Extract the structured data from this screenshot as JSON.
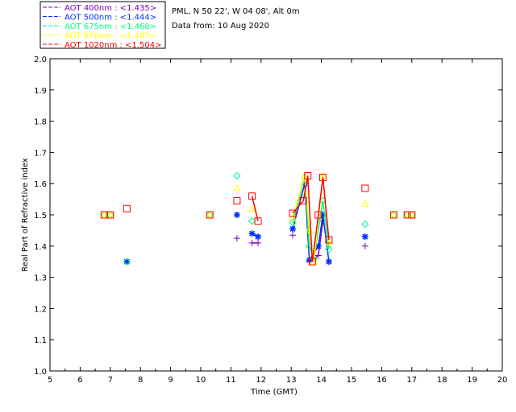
{
  "chart_data": {
    "type": "scatter",
    "title_lines": [
      "PML, N 50 22', W 04 08', Alt 0m",
      "Data from: 10 Aug 2020"
    ],
    "xlabel": "Time (GMT)",
    "ylabel": "Real Part of Refractive index",
    "xlim": [
      5,
      20
    ],
    "ylim": [
      1.0,
      2.0
    ],
    "xticks": [
      "5",
      "6",
      "7",
      "8",
      "9",
      "10",
      "11",
      "12",
      "13",
      "14",
      "15",
      "16",
      "17",
      "18",
      "19",
      "20"
    ],
    "yticks": [
      "1.0",
      "1.1",
      "1.2",
      "1.3",
      "1.4",
      "1.5",
      "1.6",
      "1.7",
      "1.8",
      "1.9",
      "2.0"
    ],
    "legend_position": "top-left outside",
    "series": [
      {
        "name": "AOT  400nm : <1.435>",
        "color": "#7f00bf",
        "marker": "plus",
        "points": [
          [
            11.2,
            1.425
          ],
          [
            11.7,
            1.41
          ],
          [
            11.9,
            1.41
          ],
          [
            13.05,
            1.435
          ],
          [
            13.6,
            1.35
          ],
          [
            13.9,
            1.37
          ],
          [
            14.05,
            1.48
          ],
          [
            15.45,
            1.4
          ]
        ]
      },
      {
        "name": "AOT  500nm : <1.444>",
        "color": "#0030ff",
        "marker": "asterisk",
        "points": [
          [
            7.55,
            1.35
          ],
          [
            11.2,
            1.5
          ],
          [
            11.7,
            1.44
          ],
          [
            11.9,
            1.43
          ],
          [
            13.05,
            1.455
          ],
          [
            13.45,
            1.6
          ],
          [
            13.6,
            1.355
          ],
          [
            13.9,
            1.4
          ],
          [
            14.05,
            1.5
          ],
          [
            14.25,
            1.35
          ],
          [
            15.45,
            1.43
          ]
        ]
      },
      {
        "name": "AOT  675nm : <1.468>",
        "color": "#00ff80",
        "marker": "diamond",
        "points": [
          [
            6.8,
            1.5
          ],
          [
            7.0,
            1.5
          ],
          [
            7.55,
            1.35
          ],
          [
            10.3,
            1.5
          ],
          [
            11.2,
            1.625
          ],
          [
            11.7,
            1.48
          ],
          [
            13.05,
            1.475
          ],
          [
            13.45,
            1.62
          ],
          [
            13.6,
            1.4
          ],
          [
            13.75,
            1.36
          ],
          [
            14.05,
            1.545
          ],
          [
            14.25,
            1.39
          ],
          [
            15.45,
            1.47
          ],
          [
            16.4,
            1.5
          ],
          [
            16.85,
            1.5
          ],
          [
            17.0,
            1.5
          ]
        ]
      },
      {
        "name": "AOT  870nm : <1.487>",
        "color": "#ffff00",
        "marker": "triangle",
        "points": [
          [
            6.8,
            1.5
          ],
          [
            7.0,
            1.5
          ],
          [
            10.3,
            1.5
          ],
          [
            11.2,
            1.585
          ],
          [
            11.7,
            1.52
          ],
          [
            13.05,
            1.49
          ],
          [
            13.45,
            1.625
          ],
          [
            13.6,
            1.45
          ],
          [
            13.75,
            1.35
          ],
          [
            14.05,
            1.625
          ],
          [
            14.25,
            1.41
          ],
          [
            15.45,
            1.535
          ],
          [
            16.4,
            1.5
          ],
          [
            16.85,
            1.5
          ],
          [
            17.0,
            1.5
          ]
        ]
      },
      {
        "name": "AOT 1020nm : <1.504>",
        "color": "#ff0000",
        "marker": "square",
        "points": [
          [
            6.8,
            1.5
          ],
          [
            7.0,
            1.5
          ],
          [
            7.55,
            1.52
          ],
          [
            10.3,
            1.5
          ],
          [
            11.2,
            1.545
          ],
          [
            11.7,
            1.56
          ],
          [
            11.9,
            1.48
          ],
          [
            13.05,
            1.505
          ],
          [
            13.4,
            1.545
          ],
          [
            13.55,
            1.625
          ],
          [
            13.7,
            1.35
          ],
          [
            13.9,
            1.5
          ],
          [
            14.05,
            1.62
          ],
          [
            14.25,
            1.42
          ],
          [
            15.45,
            1.585
          ],
          [
            16.4,
            1.5
          ],
          [
            16.85,
            1.5
          ],
          [
            17.0,
            1.5
          ]
        ]
      }
    ]
  }
}
